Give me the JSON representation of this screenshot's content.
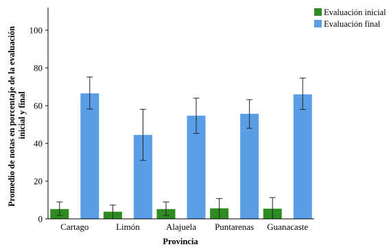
{
  "chart_data": {
    "type": "bar",
    "xlabel": "Provincia",
    "ylabel_lines": [
      "Promedio de notas en porcentaje de la evaluación",
      "inicial y final"
    ],
    "categories": [
      "Cartago",
      "Limón",
      "Alajuela",
      "Puntarenas",
      "Guanacaste"
    ],
    "ylim": [
      0,
      112
    ],
    "yticks": [
      0,
      20,
      40,
      60,
      80,
      100
    ],
    "grid": false,
    "legend_position": "top-right",
    "series": [
      {
        "name": "Evaluación inicial",
        "color": "#2e8b22",
        "values": [
          5.2,
          3.8,
          5.2,
          5.6,
          5.4
        ],
        "err_low": [
          1.8,
          0,
          1.8,
          0,
          0
        ],
        "err_high": [
          9.0,
          7.3,
          9.0,
          10.8,
          11.3
        ]
      },
      {
        "name": "Evaluación final",
        "color": "#5b9ee8",
        "values": [
          66.5,
          44.5,
          54.7,
          55.7,
          66.0
        ],
        "err_low": [
          58.2,
          31.0,
          45.3,
          48.0,
          58.0
        ],
        "err_high": [
          75.2,
          58.1,
          64.0,
          63.2,
          74.6
        ]
      }
    ]
  }
}
